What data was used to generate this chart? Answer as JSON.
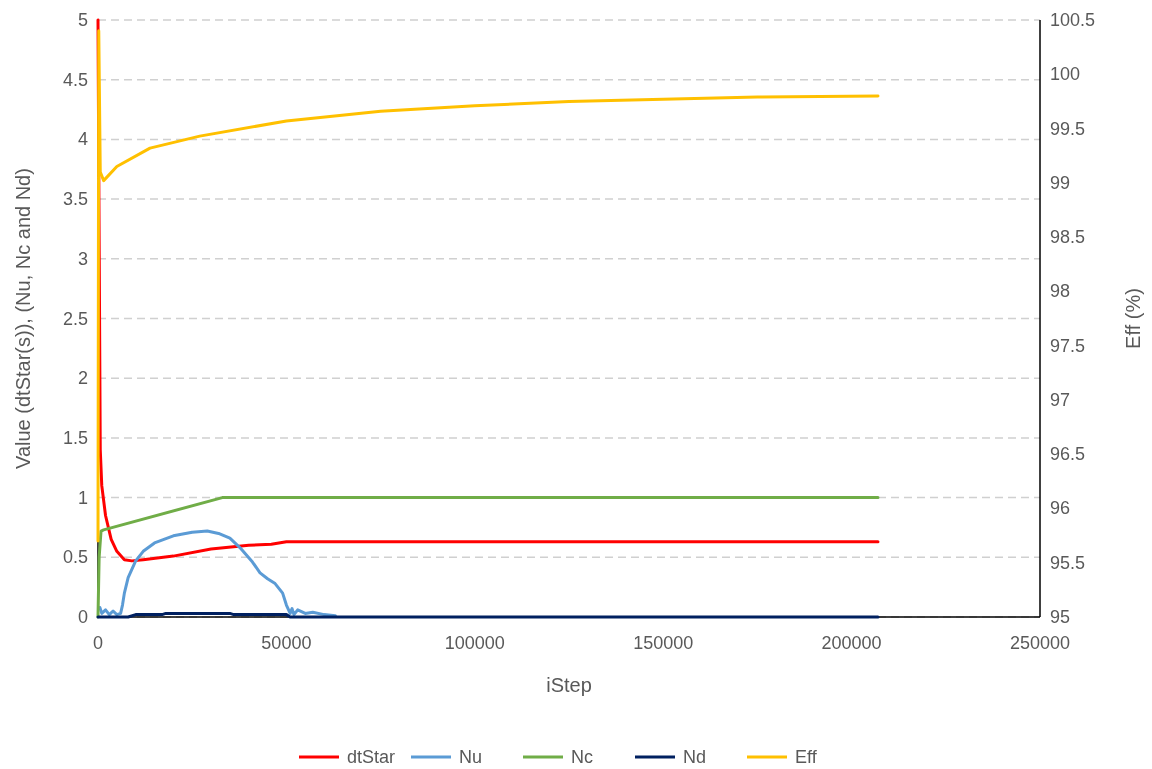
{
  "chart_data": {
    "type": "line",
    "xlabel": "iStep",
    "ylabel": "Value (dtStar(s)), (Nu, Nc and Nd)",
    "y2label": "Eff (%)",
    "xlim": [
      0,
      250000
    ],
    "xticks": [
      0,
      50000,
      100000,
      150000,
      200000,
      250000
    ],
    "ylim": [
      0,
      5
    ],
    "yticks": [
      0,
      0.5,
      1,
      1.5,
      2,
      2.5,
      3,
      3.5,
      4,
      4.5,
      5
    ],
    "y2lim": [
      95,
      100.5
    ],
    "y2ticks": [
      95,
      95.5,
      96,
      96.5,
      97,
      97.5,
      98,
      98.5,
      99,
      99.5,
      100,
      100.5
    ],
    "grid": "y",
    "legend": "bottom",
    "series": [
      {
        "name": "dtStar",
        "color": "#ff0000",
        "x": [
          0,
          600,
          1000,
          2000,
          3500,
          5000,
          7000,
          9000,
          12000,
          20000,
          30000,
          40000,
          46000,
          50000,
          100000,
          150000,
          207000
        ],
        "values": [
          5,
          1.4,
          1.1,
          0.85,
          0.65,
          0.55,
          0.48,
          0.47,
          0.48,
          0.51,
          0.57,
          0.6,
          0.61,
          0.63,
          0.63,
          0.63,
          0.63
        ]
      },
      {
        "name": "Nu",
        "color": "#5b9bd5",
        "x": [
          500,
          1000,
          2000,
          3000,
          4000,
          5000,
          6000,
          6500,
          7000,
          8000,
          10000,
          12000,
          15000,
          20000,
          25000,
          29000,
          32000,
          35000,
          38000,
          41000,
          43000,
          45000,
          47000,
          49000,
          50000,
          51000,
          51500,
          52000,
          53000,
          55000,
          57000,
          60000,
          63000
        ],
        "values": [
          0.08,
          0.03,
          0.06,
          0.02,
          0.05,
          0.02,
          0.03,
          0.1,
          0.2,
          0.33,
          0.47,
          0.55,
          0.62,
          0.68,
          0.71,
          0.72,
          0.7,
          0.66,
          0.57,
          0.46,
          0.37,
          0.32,
          0.28,
          0.2,
          0.1,
          0.03,
          0.07,
          0.02,
          0.06,
          0.03,
          0.04,
          0.02,
          0.01
        ]
      },
      {
        "name": "Nc",
        "color": "#70ad47",
        "x": [
          0,
          300,
          800,
          1500,
          33000,
          207000
        ],
        "values": [
          0,
          0.5,
          0.72,
          0.73,
          1,
          1
        ]
      },
      {
        "name": "Nd",
        "color": "#002060",
        "x": [
          0,
          8000,
          10000,
          17000,
          18000,
          35000,
          36000,
          50000,
          51000,
          207000
        ],
        "values": [
          0,
          0,
          0.02,
          0.02,
          0.03,
          0.03,
          0.02,
          0.02,
          0,
          0
        ]
      },
      {
        "name": "Eff",
        "color": "#ffc000",
        "axis": "y2",
        "x": [
          0,
          200,
          600,
          1500,
          5000,
          13800,
          27000,
          50000,
          75000,
          100000,
          125000,
          150000,
          175000,
          207000
        ],
        "values": [
          95.7,
          100.4,
          99.1,
          99.02,
          99.15,
          99.32,
          99.43,
          99.57,
          99.66,
          99.71,
          99.75,
          99.77,
          99.79,
          99.8
        ]
      }
    ]
  }
}
